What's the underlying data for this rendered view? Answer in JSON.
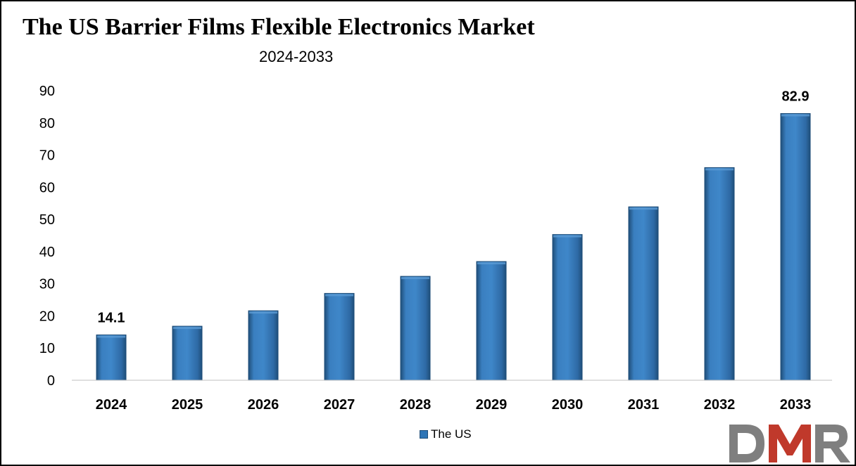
{
  "title": "The US Barrier Films Flexible Electronics Market",
  "subtitle": "2024-2033",
  "colors": {
    "bar": "#2e75b6",
    "bar_dark": "#1f4e79",
    "bar_light": "#5b9bd5",
    "logo_gray": "#7f7f7f",
    "logo_red": "#c0392b"
  },
  "logo": {
    "text": "DMR",
    "icon": "dmr-logo"
  },
  "chart_data": {
    "type": "bar",
    "categories": [
      "2024",
      "2025",
      "2026",
      "2027",
      "2028",
      "2029",
      "2030",
      "2031",
      "2032",
      "2033"
    ],
    "series": [
      {
        "name": "The US",
        "values": [
          14.1,
          16.8,
          21.6,
          27.0,
          32.3,
          36.9,
          45.3,
          53.9,
          66.1,
          82.9
        ]
      }
    ],
    "data_labels": [
      {
        "index": 0,
        "text": "14.1"
      },
      {
        "index": 9,
        "text": "82.9"
      }
    ],
    "yticks": [
      "0",
      "10",
      "20",
      "30",
      "40",
      "50",
      "60",
      "70",
      "80",
      "90"
    ],
    "ylim": [
      0,
      90
    ],
    "xlabel": "",
    "ylabel": "",
    "grid": false,
    "legend": "bottom-center"
  }
}
